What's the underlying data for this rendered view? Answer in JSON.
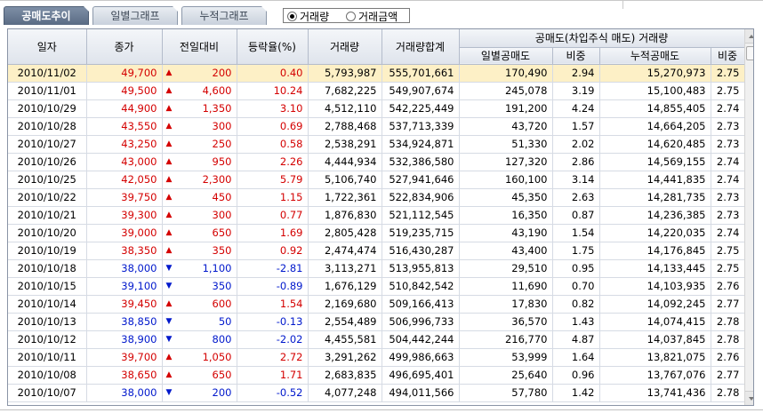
{
  "tabs": [
    {
      "label": "공매도추이",
      "active": true
    },
    {
      "label": "일별그래프",
      "active": false
    },
    {
      "label": "누적그래프",
      "active": false
    }
  ],
  "radio": {
    "options": [
      {
        "label": "거래량",
        "checked": true
      },
      {
        "label": "거래금액",
        "checked": false
      }
    ]
  },
  "headers": {
    "date": "일자",
    "close": "종가",
    "change": "전일대비",
    "rate": "등락율(%)",
    "volume": "거래량",
    "volume_total": "거래량합계",
    "group": "공매도(차입주식 매도) 거래량",
    "daily_short": "일별공매도",
    "daily_ratio": "비중",
    "cum_short": "누적공매도",
    "cum_ratio": "비중"
  },
  "colors": {
    "up": "#d40000",
    "down": "#0018cc",
    "selected_row": "#fdf0c6"
  },
  "rows": [
    {
      "date": "2010/11/02",
      "close": "49,700",
      "dir": "up",
      "change": "200",
      "rate": "0.40",
      "volume": "5,793,987",
      "total": "555,701,661",
      "short": "170,490",
      "ratio": "2.94",
      "cum": "15,270,973",
      "cum_ratio": "2.75"
    },
    {
      "date": "2010/11/01",
      "close": "49,500",
      "dir": "up",
      "change": "4,600",
      "rate": "10.24",
      "volume": "7,682,225",
      "total": "549,907,674",
      "short": "245,078",
      "ratio": "3.19",
      "cum": "15,100,483",
      "cum_ratio": "2.75"
    },
    {
      "date": "2010/10/29",
      "close": "44,900",
      "dir": "up",
      "change": "1,350",
      "rate": "3.10",
      "volume": "4,512,110",
      "total": "542,225,449",
      "short": "191,200",
      "ratio": "4.24",
      "cum": "14,855,405",
      "cum_ratio": "2.74"
    },
    {
      "date": "2010/10/28",
      "close": "43,550",
      "dir": "up",
      "change": "300",
      "rate": "0.69",
      "volume": "2,788,468",
      "total": "537,713,339",
      "short": "43,720",
      "ratio": "1.57",
      "cum": "14,664,205",
      "cum_ratio": "2.73"
    },
    {
      "date": "2010/10/27",
      "close": "43,250",
      "dir": "up",
      "change": "250",
      "rate": "0.58",
      "volume": "2,538,291",
      "total": "534,924,871",
      "short": "51,330",
      "ratio": "2.02",
      "cum": "14,620,485",
      "cum_ratio": "2.73"
    },
    {
      "date": "2010/10/26",
      "close": "43,000",
      "dir": "up",
      "change": "950",
      "rate": "2.26",
      "volume": "4,444,934",
      "total": "532,386,580",
      "short": "127,320",
      "ratio": "2.86",
      "cum": "14,569,155",
      "cum_ratio": "2.74"
    },
    {
      "date": "2010/10/25",
      "close": "42,050",
      "dir": "up",
      "change": "2,300",
      "rate": "5.79",
      "volume": "5,106,740",
      "total": "527,941,646",
      "short": "160,100",
      "ratio": "3.14",
      "cum": "14,441,835",
      "cum_ratio": "2.74"
    },
    {
      "date": "2010/10/22",
      "close": "39,750",
      "dir": "up",
      "change": "450",
      "rate": "1.15",
      "volume": "1,722,361",
      "total": "522,834,906",
      "short": "45,350",
      "ratio": "2.63",
      "cum": "14,281,735",
      "cum_ratio": "2.73"
    },
    {
      "date": "2010/10/21",
      "close": "39,300",
      "dir": "up",
      "change": "300",
      "rate": "0.77",
      "volume": "1,876,830",
      "total": "521,112,545",
      "short": "16,350",
      "ratio": "0.87",
      "cum": "14,236,385",
      "cum_ratio": "2.73"
    },
    {
      "date": "2010/10/20",
      "close": "39,000",
      "dir": "up",
      "change": "650",
      "rate": "1.69",
      "volume": "2,805,428",
      "total": "519,235,715",
      "short": "43,190",
      "ratio": "1.54",
      "cum": "14,220,035",
      "cum_ratio": "2.74"
    },
    {
      "date": "2010/10/19",
      "close": "38,350",
      "dir": "up",
      "change": "350",
      "rate": "0.92",
      "volume": "2,474,474",
      "total": "516,430,287",
      "short": "43,400",
      "ratio": "1.75",
      "cum": "14,176,845",
      "cum_ratio": "2.75"
    },
    {
      "date": "2010/10/18",
      "close": "38,000",
      "dir": "down",
      "change": "1,100",
      "rate": "-2.81",
      "volume": "3,113,271",
      "total": "513,955,813",
      "short": "29,510",
      "ratio": "0.95",
      "cum": "14,133,445",
      "cum_ratio": "2.75"
    },
    {
      "date": "2010/10/15",
      "close": "39,100",
      "dir": "down",
      "change": "350",
      "rate": "-0.89",
      "volume": "1,676,129",
      "total": "510,842,542",
      "short": "11,690",
      "ratio": "0.70",
      "cum": "14,103,935",
      "cum_ratio": "2.76"
    },
    {
      "date": "2010/10/14",
      "close": "39,450",
      "dir": "up",
      "change": "600",
      "rate": "1.54",
      "volume": "2,169,680",
      "total": "509,166,413",
      "short": "17,830",
      "ratio": "0.82",
      "cum": "14,092,245",
      "cum_ratio": "2.77"
    },
    {
      "date": "2010/10/13",
      "close": "38,850",
      "dir": "down",
      "change": "50",
      "rate": "-0.13",
      "volume": "2,554,489",
      "total": "506,996,733",
      "short": "36,570",
      "ratio": "1.43",
      "cum": "14,074,415",
      "cum_ratio": "2.78"
    },
    {
      "date": "2010/10/12",
      "close": "38,900",
      "dir": "down",
      "change": "800",
      "rate": "-2.02",
      "volume": "4,455,581",
      "total": "504,442,244",
      "short": "216,770",
      "ratio": "4.87",
      "cum": "14,037,845",
      "cum_ratio": "2.78"
    },
    {
      "date": "2010/10/11",
      "close": "39,700",
      "dir": "up",
      "change": "1,050",
      "rate": "2.72",
      "volume": "3,291,262",
      "total": "499,986,663",
      "short": "53,999",
      "ratio": "1.64",
      "cum": "13,821,075",
      "cum_ratio": "2.76"
    },
    {
      "date": "2010/10/08",
      "close": "38,650",
      "dir": "up",
      "change": "650",
      "rate": "1.71",
      "volume": "2,683,835",
      "total": "496,695,401",
      "short": "25,640",
      "ratio": "0.96",
      "cum": "13,767,076",
      "cum_ratio": "2.77"
    },
    {
      "date": "2010/10/07",
      "close": "38,000",
      "dir": "down",
      "change": "200",
      "rate": "-0.52",
      "volume": "4,077,248",
      "total": "494,011,566",
      "short": "57,780",
      "ratio": "1.42",
      "cum": "13,741,436",
      "cum_ratio": "2.78"
    }
  ]
}
